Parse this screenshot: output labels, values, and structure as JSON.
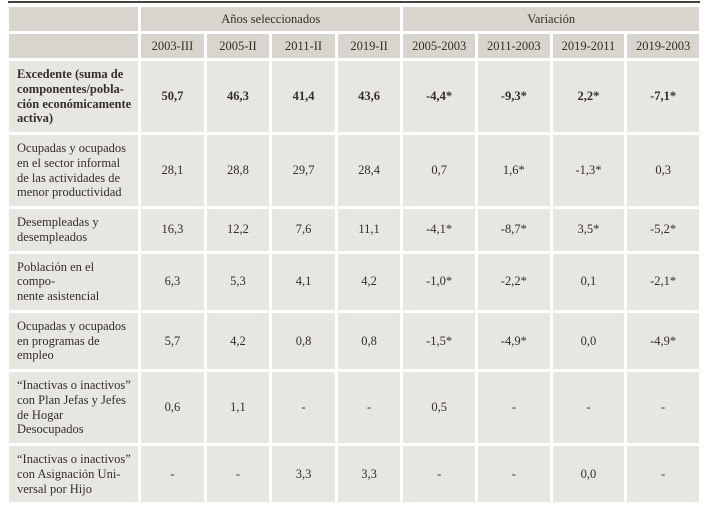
{
  "table": {
    "group_headers": {
      "years": "Años seleccionados",
      "variation": "Variación"
    },
    "columns": [
      "2003-III",
      "2005-II",
      "2011-II",
      "2019-II",
      "2005-2003",
      "2011-2003",
      "2019-2011",
      "2019-2003"
    ],
    "rows": [
      {
        "label": "Excedente (suma de\ncomponentes/pobla-\nción económicamente\nactiva)",
        "bold": true,
        "values": [
          "50,7",
          "46,3",
          "41,4",
          "43,6",
          "-4,4*",
          "-9,3*",
          "2,2*",
          "-7,1*"
        ]
      },
      {
        "label": "Ocupadas y ocupados\nen el sector informal\nde las actividades de\nmenor productividad",
        "bold": false,
        "values": [
          "28,1",
          "28,8",
          "29,7",
          "28,4",
          "0,7",
          "1,6*",
          "-1,3*",
          "0,3"
        ]
      },
      {
        "label": "Desempleadas y\ndesempleados",
        "bold": false,
        "values": [
          "16,3",
          "12,2",
          "7,6",
          "11,1",
          "-4,1*",
          "-8,7*",
          "3,5*",
          "-5,2*"
        ]
      },
      {
        "label": "Población en el compo-\nnente asistencial",
        "bold": false,
        "values": [
          "6,3",
          "5,3",
          "4,1",
          "4,2",
          "-1,0*",
          "-2,2*",
          "0,1",
          "-2,1*"
        ]
      },
      {
        "label": "Ocupadas y ocupados\nen programas de\nempleo",
        "bold": false,
        "values": [
          "5,7",
          "4,2",
          "0,8",
          "0,8",
          "-1,5*",
          "-4,9*",
          "0,0",
          "-4,9*"
        ]
      },
      {
        "label": "“Inactivas o inactivos”\ncon Plan Jefas y Jefes\nde Hogar Desocupados",
        "bold": false,
        "values": [
          "0,6",
          "1,1",
          "-",
          "-",
          "0,5",
          "-",
          "-",
          "-"
        ]
      },
      {
        "label": "“Inactivas o inactivos”\ncon Asignación Uni-\nversal por Hijo",
        "bold": false,
        "values": [
          "-",
          "-",
          "3,3",
          "3,3",
          "-",
          "-",
          "0,0",
          "-"
        ]
      }
    ]
  },
  "colors": {
    "header_bg": "#d8d5cf",
    "cell_bg": "#e8e6e1",
    "rule": "#45433f",
    "text": "#332f29",
    "page_bg": "#ffffff"
  },
  "chart_data": {
    "type": "table",
    "title": "",
    "column_groups": [
      "Años seleccionados",
      "Variación"
    ],
    "columns": [
      "2003-III",
      "2005-II",
      "2011-II",
      "2019-II",
      "2005-2003",
      "2011-2003",
      "2019-2011",
      "2019-2003"
    ],
    "rows": [
      {
        "label": "Excedente (suma de componentes/población económicamente activa)",
        "values": [
          "50,7",
          "46,3",
          "41,4",
          "43,6",
          "-4,4*",
          "-9,3*",
          "2,2*",
          "-7,1*"
        ]
      },
      {
        "label": "Ocupadas y ocupados en el sector informal de las actividades de menor productividad",
        "values": [
          "28,1",
          "28,8",
          "29,7",
          "28,4",
          "0,7",
          "1,6*",
          "-1,3*",
          "0,3"
        ]
      },
      {
        "label": "Desempleadas y desempleados",
        "values": [
          "16,3",
          "12,2",
          "7,6",
          "11,1",
          "-4,1*",
          "-8,7*",
          "3,5*",
          "-5,2*"
        ]
      },
      {
        "label": "Población en el componente asistencial",
        "values": [
          "6,3",
          "5,3",
          "4,1",
          "4,2",
          "-1,0*",
          "-2,2*",
          "0,1",
          "-2,1*"
        ]
      },
      {
        "label": "Ocupadas y ocupados en programas de empleo",
        "values": [
          "5,7",
          "4,2",
          "0,8",
          "0,8",
          "-1,5*",
          "-4,9*",
          "0,0",
          "-4,9*"
        ]
      },
      {
        "label": "“Inactivas o inactivos” con Plan Jefas y Jefes de Hogar Desocupados",
        "values": [
          "0,6",
          "1,1",
          "-",
          "-",
          "0,5",
          "-",
          "-",
          "-"
        ]
      },
      {
        "label": "“Inactivas o inactivos” con Asignación Universal por Hijo",
        "values": [
          "-",
          "-",
          "3,3",
          "3,3",
          "-",
          "-",
          "0,0",
          "-"
        ]
      }
    ]
  }
}
